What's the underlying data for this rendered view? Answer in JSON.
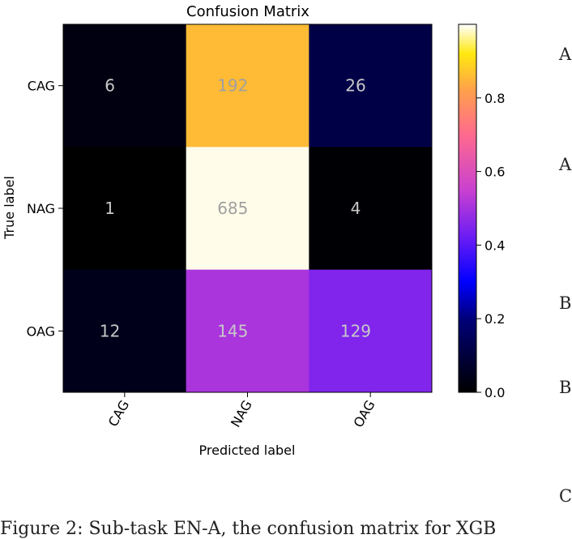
{
  "chart_data": {
    "type": "heatmap",
    "title": "Confusion Matrix",
    "xlabel": "Predicted label",
    "ylabel": "True label",
    "x_categories": [
      "CAG",
      "NAG",
      "OAG"
    ],
    "y_categories": [
      "CAG",
      "NAG",
      "OAG"
    ],
    "values": [
      [
        6,
        192,
        26
      ],
      [
        1,
        685,
        4
      ],
      [
        12,
        145,
        129
      ]
    ],
    "normalized_values": [
      [
        0.027,
        0.857,
        0.116
      ],
      [
        0.001,
        0.993,
        0.006
      ],
      [
        0.042,
        0.507,
        0.451
      ]
    ],
    "colormap": "gnuplot2",
    "colorbar": {
      "min": 0.0,
      "max": 1.0,
      "ticks": [
        "0.0",
        "0.2",
        "0.4",
        "0.6",
        "0.8"
      ]
    },
    "text_colors": {
      "dark_cell": "#c8c8c8",
      "bright_cell": "#a0a0a0"
    }
  },
  "side_labels": [
    "A",
    "A",
    "B",
    "B",
    "C"
  ],
  "caption": "Figure 2: Sub-task EN-A, the confusion matrix for XGB"
}
